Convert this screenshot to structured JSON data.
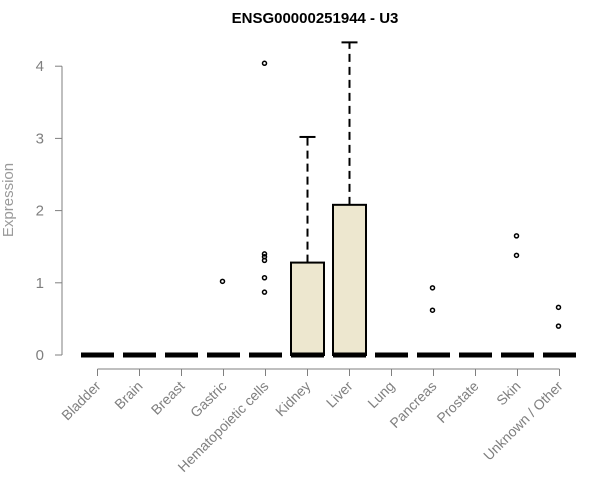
{
  "chart_data": {
    "type": "box",
    "title": "ENSG00000251944 - U3",
    "xlabel": "",
    "ylabel": "Expression",
    "ylim": [
      0,
      4.35
    ],
    "yticks": [
      "0",
      "1",
      "2",
      "3",
      "4"
    ],
    "box_fill": "#ede7cf",
    "categories": [
      "Bladder",
      "Brain",
      "Breast",
      "Gastric",
      "Hematopoietic cells",
      "Kidney",
      "Liver",
      "Lung",
      "Pancreas",
      "Prostate",
      "Skin",
      "Unknown / Other"
    ],
    "boxes": [
      {
        "category": "Bladder",
        "q1": 0,
        "median": 0,
        "q3": 0,
        "whisker_low": 0,
        "whisker_high": 0,
        "outliers": []
      },
      {
        "category": "Brain",
        "q1": 0,
        "median": 0,
        "q3": 0,
        "whisker_low": 0,
        "whisker_high": 0,
        "outliers": []
      },
      {
        "category": "Breast",
        "q1": 0,
        "median": 0,
        "q3": 0,
        "whisker_low": 0,
        "whisker_high": 0,
        "outliers": []
      },
      {
        "category": "Gastric",
        "q1": 0,
        "median": 0,
        "q3": 0,
        "whisker_low": 0,
        "whisker_high": 0,
        "outliers": [
          1.02
        ]
      },
      {
        "category": "Hematopoietic cells",
        "q1": 0,
        "median": 0,
        "q3": 0,
        "whisker_low": 0,
        "whisker_high": 0,
        "outliers": [
          4.04,
          1.4,
          1.36,
          1.31,
          1.07,
          0.87
        ]
      },
      {
        "category": "Kidney",
        "q1": 0,
        "median": 0,
        "q3": 1.28,
        "whisker_low": 0,
        "whisker_high": 3.02,
        "outliers": []
      },
      {
        "category": "Liver",
        "q1": 0,
        "median": 0,
        "q3": 2.08,
        "whisker_low": 0,
        "whisker_high": 4.33,
        "outliers": []
      },
      {
        "category": "Lung",
        "q1": 0,
        "median": 0,
        "q3": 0,
        "whisker_low": 0,
        "whisker_high": 0,
        "outliers": []
      },
      {
        "category": "Pancreas",
        "q1": 0,
        "median": 0,
        "q3": 0,
        "whisker_low": 0,
        "whisker_high": 0,
        "outliers": [
          0.93,
          0.62
        ]
      },
      {
        "category": "Prostate",
        "q1": 0,
        "median": 0,
        "q3": 0,
        "whisker_low": 0,
        "whisker_high": 0,
        "outliers": []
      },
      {
        "category": "Skin",
        "q1": 0,
        "median": 0,
        "q3": 0,
        "whisker_low": 0,
        "whisker_high": 0,
        "outliers": [
          1.65,
          1.38
        ]
      },
      {
        "category": "Unknown / Other",
        "q1": 0,
        "median": 0,
        "q3": 0,
        "whisker_low": 0,
        "whisker_high": 0,
        "outliers": [
          0.66,
          0.4
        ]
      }
    ]
  }
}
